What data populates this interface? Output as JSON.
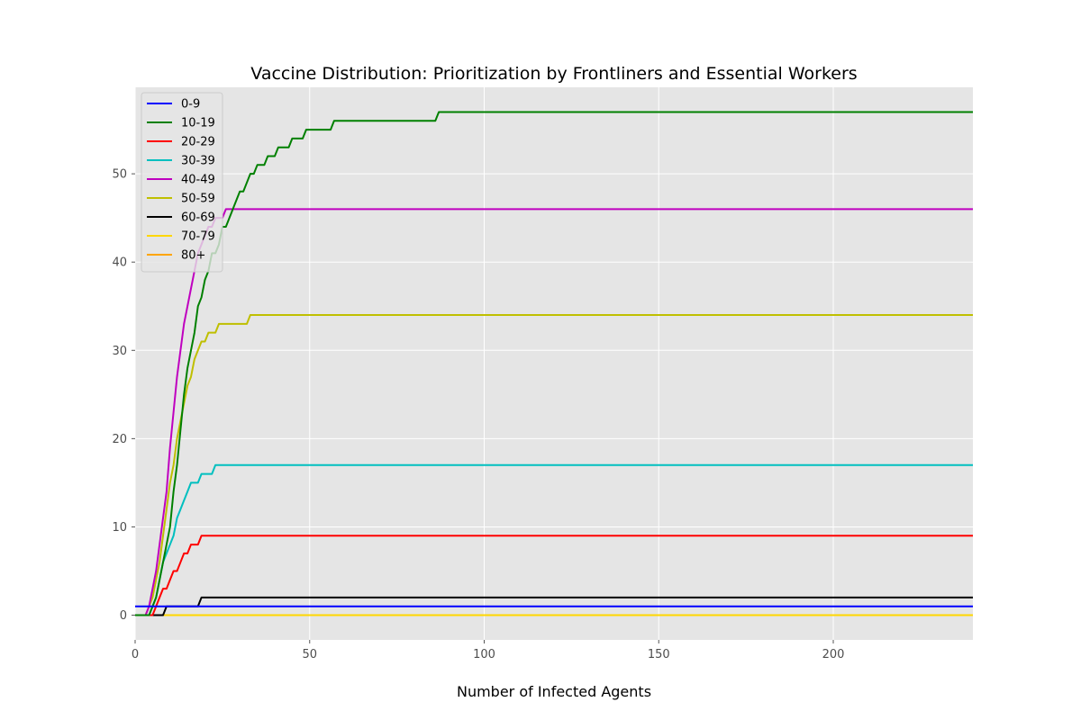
{
  "chart_data": {
    "type": "line",
    "title": "Vaccine Distribution: Prioritization by Frontliners and Essential Workers",
    "xlabel": "Number of Infected Agents",
    "ylabel": "",
    "xlim": [
      0,
      240
    ],
    "ylim": [
      -2.8,
      59.8
    ],
    "xticks": [
      0,
      50,
      100,
      150,
      200
    ],
    "yticks": [
      0,
      10,
      20,
      30,
      40,
      50
    ],
    "grid": true,
    "legend_position": "top-left",
    "series": [
      {
        "name": "0-9",
        "color": "#0000ff",
        "x": [
          0,
          240
        ],
        "y": [
          1,
          1
        ]
      },
      {
        "name": "10-19",
        "color": "#008000",
        "x": [
          0,
          3,
          4,
          5,
          6,
          7,
          8,
          9,
          10,
          11,
          12,
          13,
          14,
          15,
          16,
          17,
          18,
          19,
          20,
          21,
          22,
          23,
          24,
          25,
          26,
          27,
          28,
          29,
          30,
          31,
          32,
          33,
          34,
          35,
          36,
          37,
          38,
          39,
          40,
          41,
          42,
          43,
          44,
          45,
          46,
          47,
          48,
          49,
          50,
          56,
          57,
          86,
          87,
          240
        ],
        "y": [
          0,
          0,
          0,
          1,
          2,
          4,
          6,
          8,
          10,
          14,
          17,
          21,
          25,
          28,
          30,
          32,
          35,
          36,
          38,
          39,
          41,
          41,
          42,
          44,
          44,
          45,
          46,
          47,
          48,
          48,
          49,
          50,
          50,
          51,
          51,
          51,
          52,
          52,
          52,
          53,
          53,
          53,
          53,
          54,
          54,
          54,
          54,
          55,
          55,
          55,
          56,
          56,
          57,
          57
        ]
      },
      {
        "name": "20-29",
        "color": "#ff0000",
        "x": [
          0,
          4,
          5,
          6,
          7,
          8,
          9,
          10,
          11,
          12,
          13,
          14,
          15,
          16,
          17,
          18,
          19,
          240
        ],
        "y": [
          0,
          0,
          0,
          1,
          2,
          3,
          3,
          4,
          5,
          5,
          6,
          7,
          7,
          8,
          8,
          8,
          9,
          9
        ]
      },
      {
        "name": "30-39",
        "color": "#00bfbf",
        "x": [
          0,
          3,
          4,
          5,
          6,
          7,
          8,
          9,
          10,
          11,
          12,
          13,
          14,
          15,
          16,
          17,
          18,
          19,
          20,
          21,
          22,
          23,
          24,
          240
        ],
        "y": [
          0,
          0,
          0,
          1,
          2,
          4,
          6,
          7,
          8,
          9,
          11,
          12,
          13,
          14,
          15,
          15,
          15,
          16,
          16,
          16,
          16,
          17,
          17,
          17
        ]
      },
      {
        "name": "40-49",
        "color": "#bf00bf",
        "x": [
          0,
          3,
          4,
          5,
          6,
          7,
          8,
          9,
          10,
          11,
          12,
          13,
          14,
          15,
          16,
          17,
          18,
          19,
          20,
          21,
          22,
          23,
          24,
          25,
          26,
          240
        ],
        "y": [
          0,
          0,
          1,
          3,
          5,
          8,
          11,
          14,
          19,
          23,
          27,
          30,
          33,
          35,
          37,
          39,
          41,
          42,
          43,
          44,
          44,
          45,
          45,
          45,
          46,
          46
        ]
      },
      {
        "name": "50-59",
        "color": "#bfbf00",
        "x": [
          0,
          3,
          4,
          5,
          6,
          7,
          8,
          9,
          10,
          11,
          12,
          13,
          14,
          15,
          16,
          17,
          18,
          19,
          20,
          21,
          22,
          23,
          24,
          32,
          33,
          240
        ],
        "y": [
          0,
          0,
          1,
          2,
          4,
          6,
          9,
          12,
          15,
          17,
          20,
          22,
          24,
          26,
          27,
          29,
          30,
          31,
          31,
          32,
          32,
          32,
          33,
          33,
          34,
          34
        ]
      },
      {
        "name": "60-69",
        "color": "#000000",
        "x": [
          0,
          8,
          9,
          18,
          19,
          240
        ],
        "y": [
          0,
          0,
          1,
          1,
          2,
          2
        ]
      },
      {
        "name": "70-79",
        "color": "#ffd700",
        "x": [
          0,
          240
        ],
        "y": [
          0,
          0
        ]
      },
      {
        "name": "80+",
        "color": "#ffa500",
        "x": [
          0,
          240
        ],
        "y": [
          0,
          0
        ]
      }
    ]
  }
}
